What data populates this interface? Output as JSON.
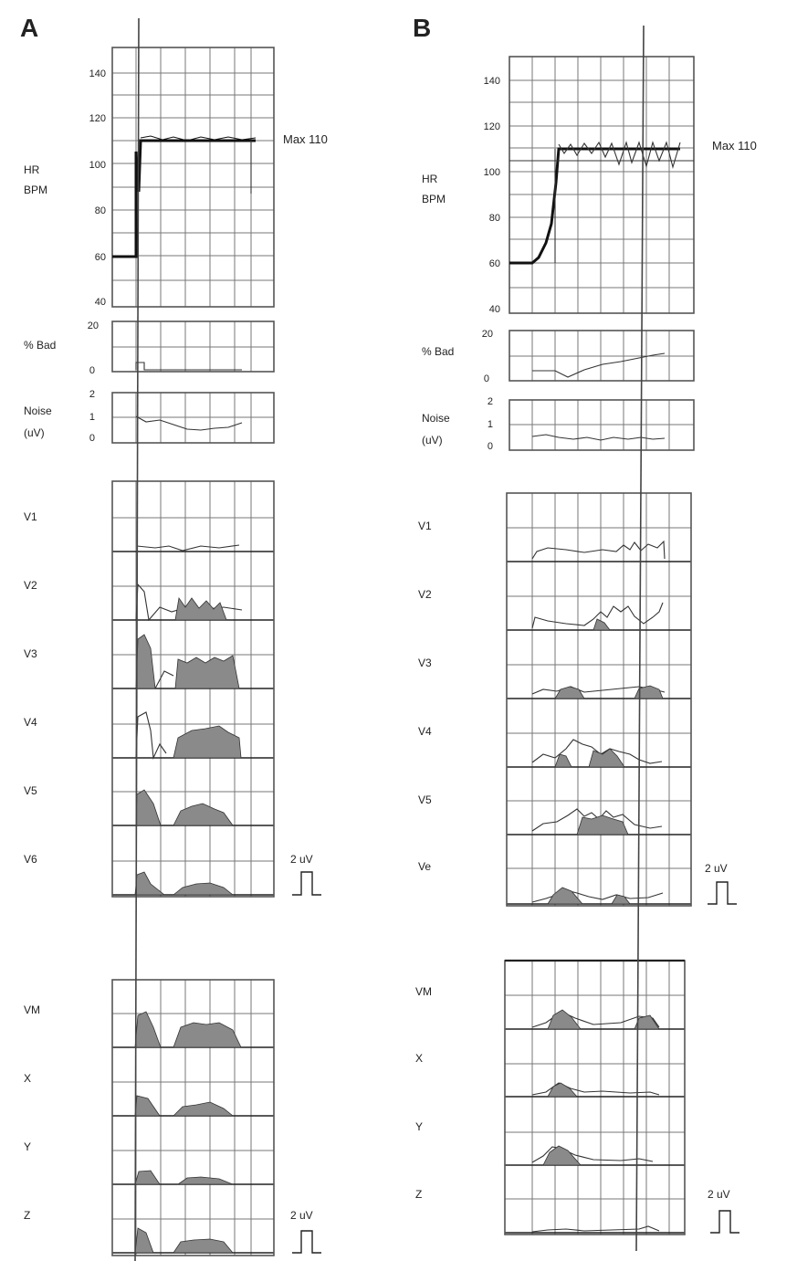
{
  "panels": [
    {
      "id": "A",
      "label": "A",
      "hr_ticks": [
        "140",
        "120",
        "100",
        "80",
        "60",
        "40"
      ],
      "hr_label": [
        "HR",
        "BPM"
      ],
      "max_label": "Max 110",
      "bad_ticks": [
        "20",
        "0"
      ],
      "bad_label": "% Bad",
      "noise_ticks": [
        "2",
        "1",
        "0"
      ],
      "noise_label": [
        "Noise",
        "(uV)"
      ],
      "leads": [
        "V1",
        "V2",
        "V3",
        "V4",
        "V5",
        "V6"
      ],
      "vector_leads": [
        "VM",
        "X",
        "Y",
        "Z"
      ],
      "scale_label": "2 uV",
      "scale_label_2": "2 uV"
    },
    {
      "id": "B",
      "label": "B",
      "hr_ticks": [
        "140",
        "120",
        "100",
        "80",
        "60",
        "40"
      ],
      "hr_label": [
        "HR",
        "BPM"
      ],
      "max_label": "Max 110",
      "bad_ticks": [
        "20",
        "0"
      ],
      "bad_label": "% Bad",
      "noise_ticks": [
        "2",
        "1",
        "0"
      ],
      "noise_label": [
        "Noise",
        "(uV)"
      ],
      "leads": [
        "V1",
        "V2",
        "V3",
        "V4",
        "V5",
        "Ve"
      ],
      "vector_leads": [
        "VM",
        "X",
        "Y",
        "Z"
      ],
      "scale_label": "2 uV",
      "scale_label_2": "2 uV"
    }
  ],
  "chart_data": [
    {
      "panel": "A",
      "type": "line",
      "title": "A",
      "ylabel": "HR BPM",
      "ylim": [
        40,
        140
      ],
      "yticks": [
        40,
        60,
        80,
        100,
        120,
        140
      ],
      "annotation": "Max 110",
      "series": [
        {
          "x": [
            0,
            1,
            2,
            5,
            30,
            60,
            90,
            100,
            100
          ],
          "y": [
            60,
            60,
            105,
            110,
            110,
            110,
            110,
            110,
            88
          ]
        }
      ],
      "percent_bad": {
        "ylim": [
          0,
          20
        ],
        "x": [
          0,
          5,
          10,
          20,
          60,
          90,
          100
        ],
        "y": [
          0,
          3,
          1,
          0,
          0,
          0,
          0
        ]
      },
      "noise_uV": {
        "ylim": [
          0,
          2
        ],
        "x": [
          0,
          10,
          20,
          30,
          40,
          50,
          60,
          70,
          80,
          90,
          100
        ],
        "y": [
          1.0,
          0.85,
          0.8,
          0.7,
          0.55,
          0.4,
          0.35,
          0.4,
          0.45,
          0.5,
          0.6
        ]
      }
    },
    {
      "panel": "B",
      "type": "line",
      "title": "B",
      "ylabel": "HR BPM",
      "ylim": [
        40,
        140
      ],
      "yticks": [
        40,
        60,
        80,
        100,
        120,
        140
      ],
      "annotation": "Max 110",
      "series": [
        {
          "x": [
            0,
            10,
            14,
            20,
            24,
            30,
            100
          ],
          "y": [
            60,
            60,
            62,
            72,
            85,
            110,
            110
          ]
        }
      ],
      "percent_bad": {
        "ylim": [
          0,
          20
        ],
        "x": [
          0,
          15,
          28,
          40,
          60,
          80,
          100
        ],
        "y": [
          0,
          0,
          2,
          5,
          8,
          10,
          14
        ]
      },
      "noise_uV": {
        "ylim": [
          0,
          2
        ],
        "x": [
          0,
          10,
          20,
          30,
          40,
          50,
          60,
          70,
          80,
          90,
          100
        ],
        "y": [
          0.5,
          0.55,
          0.5,
          0.45,
          0.4,
          0.45,
          0.5,
          0.45,
          0.5,
          0.45,
          0.4
        ]
      }
    }
  ]
}
